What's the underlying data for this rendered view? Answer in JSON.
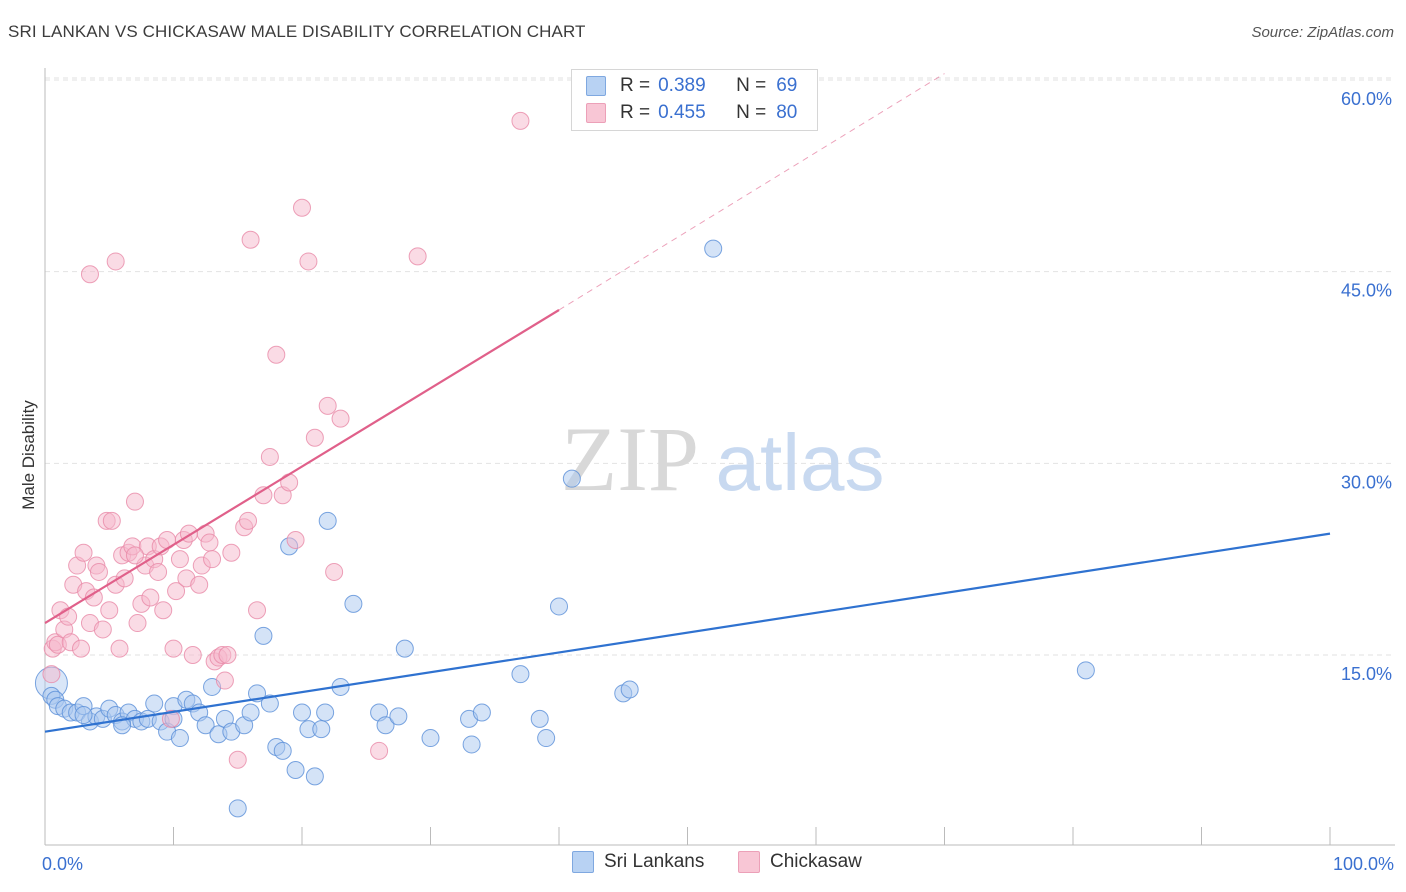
{
  "title": "SRI LANKAN VS CHICKASAW MALE DISABILITY CORRELATION CHART",
  "source": "Source: ZipAtlas.com",
  "watermark": {
    "zip": "ZIP",
    "atlas": "atlas"
  },
  "legend_top": {
    "rows": [
      {
        "r_label": "R =",
        "r_value": "0.389",
        "n_label": "N =",
        "n_value": "69"
      },
      {
        "r_label": "R =",
        "r_value": "0.455",
        "n_label": "N =",
        "n_value": "80"
      }
    ]
  },
  "colors": {
    "blue_fill": "#aac8f0",
    "blue_stroke": "#5a8fd8",
    "blue_line": "#2f72d0",
    "pink_fill": "#f5b8cb",
    "pink_stroke": "#e889a8",
    "pink_line": "#e0608a",
    "tick_label": "#3a70d0",
    "grid": "#e2e2e2"
  },
  "chart_data": {
    "type": "scatter",
    "title": "SRI LANKAN VS CHICKASAW MALE DISABILITY CORRELATION CHART",
    "xlabel": "",
    "ylabel": "Male Disability",
    "xlim": [
      0,
      100
    ],
    "ylim": [
      0,
      60
    ],
    "x_tick_labels": [
      "0.0%",
      "100.0%"
    ],
    "y_ticks": [
      15,
      30,
      45,
      60
    ],
    "y_tick_labels": [
      "15.0%",
      "30.0%",
      "45.0%",
      "60.0%"
    ],
    "grid": true,
    "legend_position": "bottom",
    "series": [
      {
        "name": "Sri Lankans",
        "r": 0.389,
        "n": 69,
        "trend": {
          "x0": 0,
          "y0": 9.0,
          "x1": 100,
          "y1": 24.5
        },
        "points": [
          [
            0.5,
            12.8
          ],
          [
            0.5,
            11.8
          ],
          [
            0.8,
            11.5
          ],
          [
            1.0,
            11.0
          ],
          [
            1.5,
            10.8
          ],
          [
            2.0,
            10.5
          ],
          [
            2.5,
            10.5
          ],
          [
            3.0,
            11.0
          ],
          [
            3.5,
            9.8
          ],
          [
            4.0,
            10.2
          ],
          [
            4.5,
            10.0
          ],
          [
            5.0,
            10.8
          ],
          [
            5.5,
            10.3
          ],
          [
            6.0,
            9.8
          ],
          [
            6.5,
            10.5
          ],
          [
            7.0,
            10.0
          ],
          [
            7.5,
            9.8
          ],
          [
            8.0,
            10.0
          ],
          [
            8.5,
            11.2
          ],
          [
            9.0,
            9.8
          ],
          [
            9.5,
            9.0
          ],
          [
            10.0,
            11.0
          ],
          [
            10.5,
            8.5
          ],
          [
            11.0,
            11.5
          ],
          [
            11.5,
            11.2
          ],
          [
            12.0,
            10.5
          ],
          [
            12.5,
            9.5
          ],
          [
            13.0,
            12.5
          ],
          [
            13.5,
            8.8
          ],
          [
            14.0,
            10.0
          ],
          [
            14.5,
            9.0
          ],
          [
            15.0,
            3.0
          ],
          [
            15.5,
            9.5
          ],
          [
            16.0,
            10.5
          ],
          [
            16.5,
            12.0
          ],
          [
            17.0,
            16.5
          ],
          [
            17.5,
            11.2
          ],
          [
            18.0,
            7.8
          ],
          [
            18.5,
            7.5
          ],
          [
            19.0,
            23.5
          ],
          [
            19.5,
            6.0
          ],
          [
            20.0,
            10.5
          ],
          [
            20.5,
            9.2
          ],
          [
            21.0,
            5.5
          ],
          [
            21.5,
            9.2
          ],
          [
            21.8,
            10.5
          ],
          [
            22.0,
            25.5
          ],
          [
            23.0,
            12.5
          ],
          [
            24.0,
            19.0
          ],
          [
            26.0,
            10.5
          ],
          [
            26.5,
            9.5
          ],
          [
            27.5,
            10.2
          ],
          [
            28.0,
            15.5
          ],
          [
            30.0,
            8.5
          ],
          [
            33.0,
            10.0
          ],
          [
            33.2,
            8.0
          ],
          [
            34.0,
            10.5
          ],
          [
            37.0,
            13.5
          ],
          [
            38.5,
            10.0
          ],
          [
            39.0,
            8.5
          ],
          [
            40.0,
            18.8
          ],
          [
            41.0,
            28.8
          ],
          [
            45.0,
            12.0
          ],
          [
            45.5,
            12.3
          ],
          [
            52.0,
            46.8
          ],
          [
            81.0,
            13.8
          ],
          [
            10.0,
            10.0
          ],
          [
            6.0,
            9.5
          ],
          [
            3.0,
            10.3
          ]
        ]
      },
      {
        "name": "Chickasaw",
        "r": 0.455,
        "n": 80,
        "trend": {
          "x0": 0,
          "y0": 17.5,
          "x1": 40,
          "y1": 42.0
        },
        "trend_dashed": {
          "x0": 40,
          "y0": 42.0,
          "x1": 70,
          "y1": 60.5
        },
        "points": [
          [
            0.5,
            13.5
          ],
          [
            0.6,
            15.5
          ],
          [
            0.8,
            16.0
          ],
          [
            1.0,
            15.8
          ],
          [
            1.2,
            18.5
          ],
          [
            1.5,
            17.0
          ],
          [
            1.8,
            18.0
          ],
          [
            2.0,
            16.0
          ],
          [
            2.2,
            20.5
          ],
          [
            2.5,
            22.0
          ],
          [
            2.8,
            15.5
          ],
          [
            3.0,
            23.0
          ],
          [
            3.2,
            20.0
          ],
          [
            3.5,
            17.5
          ],
          [
            3.8,
            19.5
          ],
          [
            4.0,
            22.0
          ],
          [
            4.2,
            21.5
          ],
          [
            4.5,
            17.0
          ],
          [
            4.8,
            25.5
          ],
          [
            5.0,
            18.5
          ],
          [
            5.2,
            25.5
          ],
          [
            5.5,
            20.5
          ],
          [
            5.8,
            15.5
          ],
          [
            6.0,
            22.8
          ],
          [
            6.2,
            21.0
          ],
          [
            6.5,
            23.0
          ],
          [
            6.8,
            23.5
          ],
          [
            7.0,
            27.0
          ],
          [
            7.2,
            17.5
          ],
          [
            7.5,
            19.0
          ],
          [
            7.8,
            22.0
          ],
          [
            8.0,
            23.5
          ],
          [
            8.2,
            19.5
          ],
          [
            8.5,
            22.5
          ],
          [
            8.8,
            21.5
          ],
          [
            9.0,
            23.5
          ],
          [
            9.2,
            18.5
          ],
          [
            9.5,
            24.0
          ],
          [
            9.8,
            10.0
          ],
          [
            10.0,
            15.5
          ],
          [
            10.2,
            20.0
          ],
          [
            10.5,
            22.5
          ],
          [
            10.8,
            24.0
          ],
          [
            11.0,
            21.0
          ],
          [
            11.5,
            15.0
          ],
          [
            12.0,
            20.5
          ],
          [
            12.2,
            22.0
          ],
          [
            12.5,
            24.5
          ],
          [
            12.8,
            23.8
          ],
          [
            13.0,
            22.5
          ],
          [
            13.2,
            14.5
          ],
          [
            13.5,
            14.8
          ],
          [
            13.8,
            15.0
          ],
          [
            14.0,
            13.0
          ],
          [
            14.2,
            15.0
          ],
          [
            14.5,
            23.0
          ],
          [
            15.0,
            6.8
          ],
          [
            15.5,
            25.0
          ],
          [
            15.8,
            25.5
          ],
          [
            16.0,
            47.5
          ],
          [
            16.5,
            18.5
          ],
          [
            17.0,
            27.5
          ],
          [
            17.5,
            30.5
          ],
          [
            18.0,
            38.5
          ],
          [
            18.5,
            27.5
          ],
          [
            19.0,
            28.5
          ],
          [
            19.5,
            24.0
          ],
          [
            20.0,
            50.0
          ],
          [
            20.5,
            45.8
          ],
          [
            21.0,
            32.0
          ],
          [
            22.0,
            34.5
          ],
          [
            22.5,
            21.5
          ],
          [
            23.0,
            33.5
          ],
          [
            26.0,
            7.5
          ],
          [
            29.0,
            46.2
          ],
          [
            37.0,
            56.8
          ],
          [
            3.5,
            44.8
          ],
          [
            5.5,
            45.8
          ],
          [
            7.0,
            22.8
          ],
          [
            11.2,
            24.5
          ]
        ]
      }
    ]
  }
}
